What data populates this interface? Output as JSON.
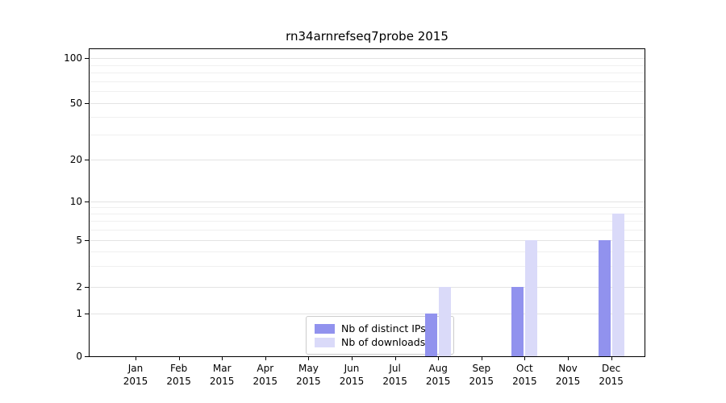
{
  "title": "rn34arnrefseq7probe 2015",
  "colors": {
    "ips_bar": "#9192ee",
    "downloads_bar": "#dadaf9",
    "grid_major": "#e3e3e3",
    "grid_minor": "#f0f0f0",
    "spine": "#000000"
  },
  "y_axis": {
    "ticks": [
      100,
      50,
      20,
      10,
      5,
      2,
      1,
      0
    ]
  },
  "x_axis": {
    "labels": [
      [
        "Jan",
        "2015"
      ],
      [
        "Feb",
        "2015"
      ],
      [
        "Mar",
        "2015"
      ],
      [
        "Apr",
        "2015"
      ],
      [
        "May",
        "2015"
      ],
      [
        "Jun",
        "2015"
      ],
      [
        "Jul",
        "2015"
      ],
      [
        "Aug",
        "2015"
      ],
      [
        "Sep",
        "2015"
      ],
      [
        "Oct",
        "2015"
      ],
      [
        "Nov",
        "2015"
      ],
      [
        "Dec",
        "2015"
      ]
    ]
  },
  "legend": {
    "items": [
      {
        "label": "Nb of distinct IPs",
        "color": "#9192ee"
      },
      {
        "label": "Nb of downloads",
        "color": "#dadaf9"
      }
    ]
  },
  "chart_data": {
    "type": "bar",
    "title": "rn34arnrefseq7probe 2015",
    "categories": [
      "Jan 2015",
      "Feb 2015",
      "Mar 2015",
      "Apr 2015",
      "May 2015",
      "Jun 2015",
      "Jul 2015",
      "Aug 2015",
      "Sep 2015",
      "Oct 2015",
      "Nov 2015",
      "Dec 2015"
    ],
    "series": [
      {
        "name": "Nb of distinct IPs",
        "values": [
          0,
          0,
          0,
          0,
          0,
          0,
          0,
          1,
          0,
          2,
          0,
          5
        ]
      },
      {
        "name": "Nb of downloads",
        "values": [
          0,
          0,
          0,
          0,
          0,
          0,
          0,
          2,
          0,
          5,
          0,
          8
        ]
      }
    ],
    "xlabel": "",
    "ylabel": "",
    "yscale": "log-like with zero baseline",
    "yticks": [
      0,
      1,
      2,
      5,
      10,
      20,
      50,
      100
    ],
    "ylim": [
      0,
      110
    ],
    "grid": true,
    "legend_position": "lower center"
  }
}
